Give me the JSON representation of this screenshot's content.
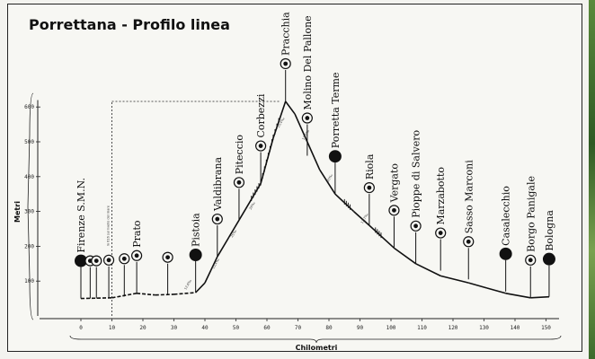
{
  "title": "Porrettana - Profilo linea",
  "y_axis": {
    "label": "Metri",
    "ticks": [
      100,
      200,
      300,
      400,
      500,
      600
    ]
  },
  "x_axis": {
    "label": "Chilometri",
    "ticks": [
      0,
      10,
      20,
      30,
      40,
      50,
      60,
      70,
      80,
      90,
      100,
      110,
      120,
      130,
      140,
      150
    ]
  },
  "annotations": {
    "watershed": "m 616 sul livello del mare",
    "grade_labels": [
      "12,6‰",
      "15,4‰",
      "25‰",
      "26‰",
      "15,4‰",
      "12,1‰",
      "25‰",
      "12,7‰"
    ]
  },
  "stations": [
    {
      "name": "Firenze S.M.N.",
      "km": 0,
      "alt": 50,
      "large": true
    },
    {
      "name": "",
      "km": 3,
      "alt": 50,
      "large": false
    },
    {
      "name": "",
      "km": 5,
      "alt": 50,
      "large": false
    },
    {
      "name": "",
      "km": 9,
      "alt": 52,
      "large": false
    },
    {
      "name": "",
      "km": 14,
      "alt": 56,
      "large": false
    },
    {
      "name": "Prato",
      "km": 18,
      "alt": 65,
      "large": false
    },
    {
      "name": "",
      "km": 28,
      "alt": 60,
      "large": false
    },
    {
      "name": "Pistoia",
      "km": 37,
      "alt": 67,
      "large": true
    },
    {
      "name": "Valdibrana",
      "km": 44,
      "alt": 170,
      "large": false
    },
    {
      "name": "Piteccio",
      "km": 51,
      "alt": 275,
      "large": false
    },
    {
      "name": "Corbezzi",
      "km": 58,
      "alt": 380,
      "large": false
    },
    {
      "name": "Pracchia",
      "km": 66,
      "alt": 616,
      "large": false
    },
    {
      "name": "Molino Del Pallone",
      "km": 73,
      "alt": 460,
      "large": false
    },
    {
      "name": "Porretta Terme",
      "km": 82,
      "alt": 350,
      "large": true
    },
    {
      "name": "Riola",
      "km": 93,
      "alt": 260,
      "large": false
    },
    {
      "name": "Vergato",
      "km": 101,
      "alt": 195,
      "large": false
    },
    {
      "name": "Pioppe di Salvero",
      "km": 108,
      "alt": 150,
      "large": false
    },
    {
      "name": "Marzabotto",
      "km": 116,
      "alt": 130,
      "large": false
    },
    {
      "name": "Sasso Marconi",
      "km": 125,
      "alt": 105,
      "large": false
    },
    {
      "name": "Casalecchio",
      "km": 137,
      "alt": 70,
      "large": true
    },
    {
      "name": "Borgo Panigale",
      "km": 145,
      "alt": 52,
      "large": false
    },
    {
      "name": "Bologna",
      "km": 151,
      "alt": 55,
      "large": true
    }
  ],
  "profile": [
    {
      "km": 0,
      "alt": 50
    },
    {
      "km": 10,
      "alt": 52
    },
    {
      "km": 18,
      "alt": 65
    },
    {
      "km": 24,
      "alt": 60
    },
    {
      "km": 30,
      "alt": 62
    },
    {
      "km": 37,
      "alt": 67
    },
    {
      "km": 40,
      "alt": 95
    },
    {
      "km": 44,
      "alt": 170
    },
    {
      "km": 51,
      "alt": 275
    },
    {
      "km": 58,
      "alt": 380
    },
    {
      "km": 62,
      "alt": 510
    },
    {
      "km": 66,
      "alt": 616
    },
    {
      "km": 69,
      "alt": 580
    },
    {
      "km": 73,
      "alt": 500
    },
    {
      "km": 77,
      "alt": 420
    },
    {
      "km": 82,
      "alt": 350
    },
    {
      "km": 88,
      "alt": 300
    },
    {
      "km": 93,
      "alt": 260
    },
    {
      "km": 101,
      "alt": 195
    },
    {
      "km": 108,
      "alt": 150
    },
    {
      "km": 116,
      "alt": 115
    },
    {
      "km": 125,
      "alt": 95
    },
    {
      "km": 131,
      "alt": 80
    },
    {
      "km": 137,
      "alt": 65
    },
    {
      "km": 145,
      "alt": 52
    },
    {
      "km": 151,
      "alt": 55
    }
  ]
}
